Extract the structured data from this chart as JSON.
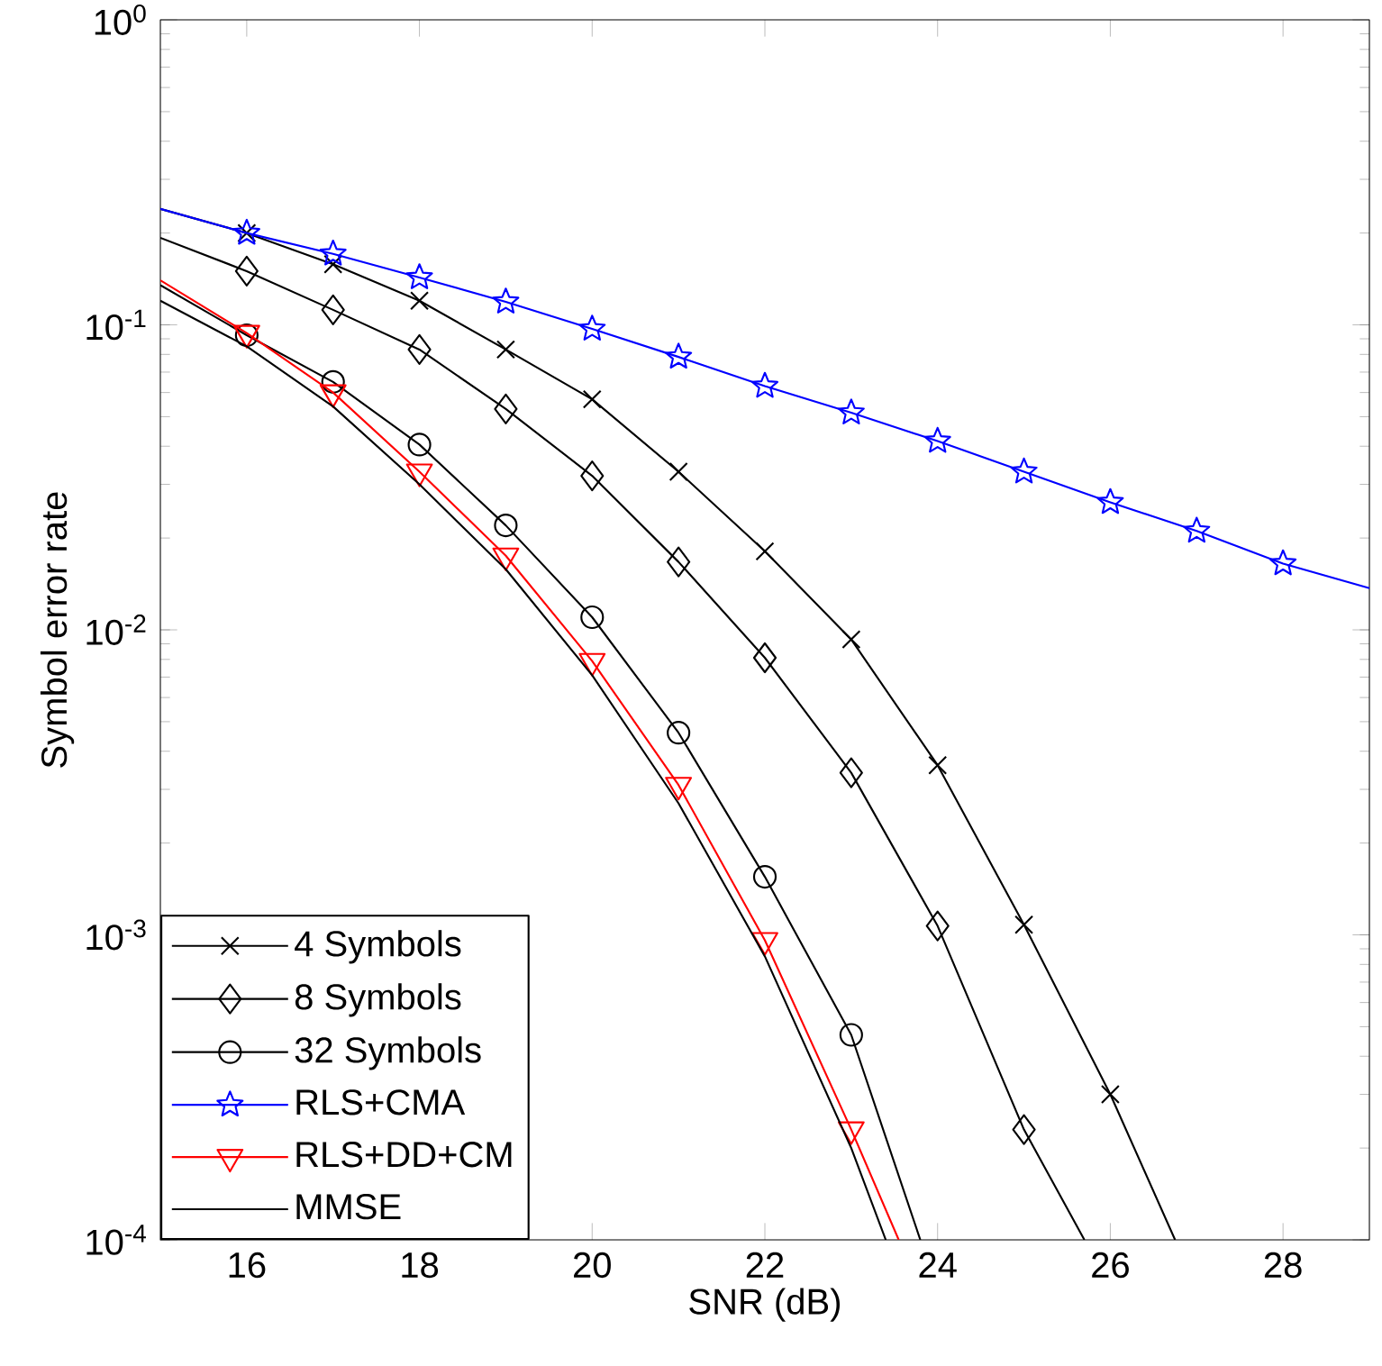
{
  "chart_data": {
    "type": "line",
    "xlabel": "SNR (dB)",
    "ylabel": "Symbol error rate",
    "xlim": [
      15,
      29
    ],
    "xticks": [
      16,
      18,
      20,
      22,
      24,
      26,
      28
    ],
    "ylim": [
      0.0001,
      1
    ],
    "log": "y",
    "yticks": [
      {
        "value": 0.0001,
        "label": "10$^{-4}$"
      },
      {
        "value": 0.001,
        "label": "10$^{-3}$"
      },
      {
        "value": 0.01,
        "label": "10$^{-2}$"
      },
      {
        "value": 0.1,
        "label": "10$^{-1}$"
      },
      {
        "value": 1,
        "label": "10$^{0}$"
      }
    ],
    "grid": false,
    "legend": "bottom left",
    "series": [
      {
        "name": "4 Symbols",
        "color": "#000000",
        "marker": "cross",
        "x": [
          15,
          16,
          17,
          18,
          19,
          20,
          21,
          22,
          23,
          24,
          25,
          26,
          26.75
        ],
        "values": [
          0.24,
          0.2,
          0.158,
          0.12,
          0.083,
          0.057,
          0.033,
          0.0181,
          0.0093,
          0.0036,
          0.00108,
          0.0003,
          0.0001
        ]
      },
      {
        "name": "8 Symbols",
        "color": "#000000",
        "marker": "diamond",
        "x": [
          15,
          16,
          17,
          18,
          19,
          20,
          21,
          22,
          23,
          24,
          25,
          25.7
        ],
        "values": [
          0.193,
          0.15,
          0.112,
          0.083,
          0.053,
          0.032,
          0.0167,
          0.0081,
          0.0034,
          0.00107,
          0.00023,
          0.0001
        ]
      },
      {
        "name": "32 Symbols",
        "color": "#000000",
        "marker": "circle",
        "x": [
          15,
          16,
          17,
          18,
          19,
          20,
          21,
          22,
          23,
          23.8
        ],
        "values": [
          0.135,
          0.0925,
          0.065,
          0.0405,
          0.022,
          0.011,
          0.0046,
          0.00155,
          0.00047,
          0.0001
        ]
      },
      {
        "name": "RLS+CMA",
        "color": "#0000ff",
        "marker": "star",
        "x": [
          15,
          16,
          17,
          18,
          19,
          20,
          21,
          22,
          23,
          24,
          25,
          26,
          27,
          28,
          29
        ],
        "values": [
          0.24,
          0.2,
          0.171,
          0.143,
          0.119,
          0.097,
          0.0785,
          0.063,
          0.0515,
          0.0416,
          0.033,
          0.0262,
          0.0211,
          0.0165,
          0.0137
        ]
      },
      {
        "name": "RLS+DD+CM",
        "color": "#ff0000",
        "marker": "triangle",
        "x": [
          15,
          16,
          17,
          18,
          19,
          20,
          21,
          22,
          23,
          23.55
        ],
        "values": [
          0.14,
          0.094,
          0.06,
          0.033,
          0.0175,
          0.0079,
          0.0031,
          0.00096,
          0.00023,
          0.0001
        ]
      },
      {
        "name": "MMSE",
        "color": "#000000",
        "marker": "none",
        "x": [
          15,
          16,
          17,
          18,
          19,
          20,
          21,
          22,
          23,
          23.4
        ],
        "values": [
          0.12,
          0.085,
          0.054,
          0.03,
          0.0158,
          0.0071,
          0.0027,
          0.00085,
          0.0002,
          0.0001
        ]
      }
    ]
  }
}
